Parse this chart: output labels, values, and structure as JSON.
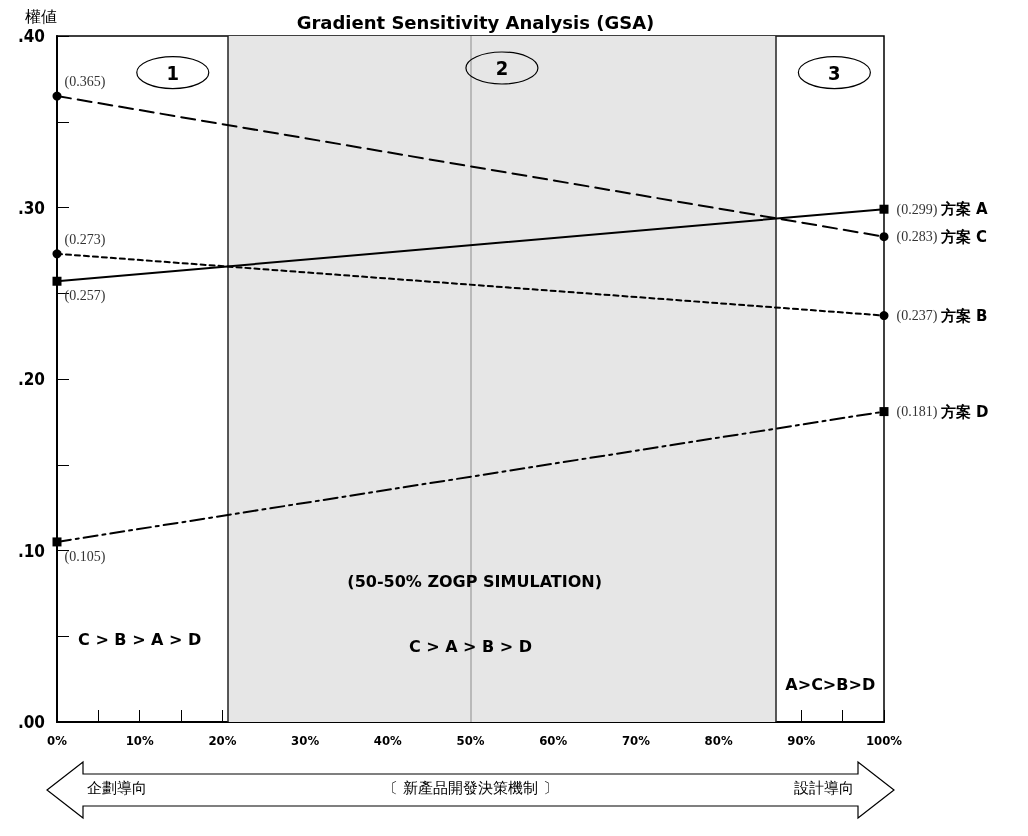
{
  "chart_data": {
    "type": "line",
    "title": "Gradient Sensitivity Analysis (GSA)",
    "ylabel": "權値",
    "x": [
      0,
      100
    ],
    "series": [
      {
        "name": "方案 A",
        "color": "#000000",
        "values": [
          0.257,
          0.299
        ],
        "value_labels": [
          "(0.257)",
          "(0.299)"
        ],
        "marker": "square",
        "line_style": "solid"
      },
      {
        "name": "方案 C",
        "color": "#000000",
        "values": [
          0.365,
          0.283
        ],
        "value_labels": [
          "(0.365)",
          "(0.283)"
        ],
        "marker": "circle",
        "line_style": "dashed"
      },
      {
        "name": "方案 B",
        "color": "#000000",
        "values": [
          0.273,
          0.237
        ],
        "value_labels": [
          "(0.273)",
          "(0.237)"
        ],
        "marker": "circle",
        "line_style": "dotted"
      },
      {
        "name": "方案 D",
        "color": "#000000",
        "values": [
          0.105,
          0.181
        ],
        "value_labels": [
          "(0.105)",
          "(0.181)"
        ],
        "marker": "square",
        "line_style": "dashdot"
      }
    ],
    "xlim": [
      0,
      100
    ],
    "xticks": [
      {
        "value": 0,
        "label": "0%"
      },
      {
        "value": 5,
        "label": null
      },
      {
        "value": 10,
        "label": "10%"
      },
      {
        "value": 15,
        "label": null
      },
      {
        "value": 20,
        "label": "20%"
      },
      {
        "value": 25,
        "label": null
      },
      {
        "value": 30,
        "label": "30%"
      },
      {
        "value": 35,
        "label": null
      },
      {
        "value": 40,
        "label": "40%"
      },
      {
        "value": 45,
        "label": null
      },
      {
        "value": 50,
        "label": "50%"
      },
      {
        "value": 55,
        "label": null
      },
      {
        "value": 60,
        "label": "60%"
      },
      {
        "value": 65,
        "label": null
      },
      {
        "value": 70,
        "label": "70%"
      },
      {
        "value": 75,
        "label": null
      },
      {
        "value": 80,
        "label": "80%"
      },
      {
        "value": 85,
        "label": null
      },
      {
        "value": 90,
        "label": "90%"
      },
      {
        "value": 95,
        "label": null
      },
      {
        "value": 100,
        "label": "100%"
      }
    ],
    "ylim": [
      0,
      0.4
    ],
    "yticks": [
      {
        "value": 0,
        "label": ".00"
      },
      {
        "value": 0.05,
        "label": null
      },
      {
        "value": 0.1,
        "label": ".10"
      },
      {
        "value": 0.15,
        "label": null
      },
      {
        "value": 0.2,
        "label": ".20"
      },
      {
        "value": 0.25,
        "label": null
      },
      {
        "value": 0.3,
        "label": ".30"
      },
      {
        "value": 0.35,
        "label": null
      },
      {
        "value": 0.4,
        "label": ".40"
      }
    ],
    "grid": false,
    "legend": false,
    "bands": [
      {
        "axis": "x",
        "from": 20.7,
        "to": 86.9,
        "label": "2",
        "color": "#e6e6e6"
      }
    ],
    "ref_lines": [
      {
        "axis": "x",
        "value": 20.7,
        "color": "#222222",
        "line_style": "solid"
      },
      {
        "axis": "x",
        "value": 50,
        "color": "#aaaaaa",
        "line_style": "solid"
      },
      {
        "axis": "x",
        "value": 86.9,
        "color": "#222222",
        "line_style": "solid"
      }
    ],
    "annotations": [
      "1",
      "3",
      "(50-50% ZOGP SIMULATION)",
      "C > B > A > D",
      "C > A > B > D",
      "A>C>B>D",
      "企劃導向",
      "〔 新產品開發決策機制 〕",
      "設計導向"
    ]
  }
}
